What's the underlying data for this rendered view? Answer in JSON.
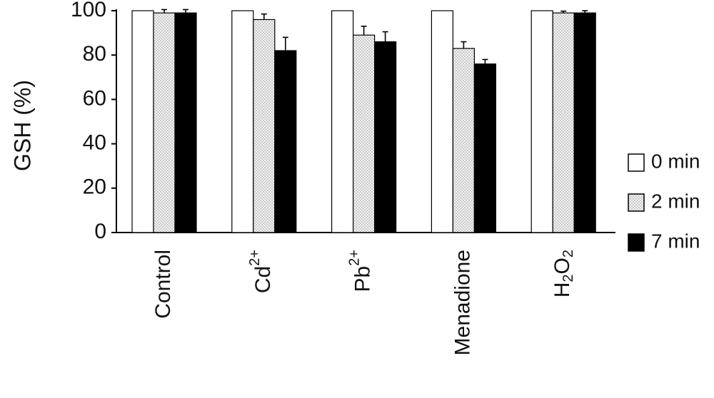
{
  "chart_data": {
    "type": "bar",
    "title": "",
    "xlabel": "",
    "ylabel": "GSH (%)",
    "ylim": [
      0,
      100
    ],
    "yticks": [
      0,
      20,
      40,
      60,
      80,
      100
    ],
    "grid": false,
    "legend_position": "right",
    "categories": [
      {
        "base": "Control",
        "sub": "",
        "sup": ""
      },
      {
        "base": "Cd",
        "sub": "",
        "sup": "2+"
      },
      {
        "base": "Pb",
        "sub": "",
        "sup": "2+"
      },
      {
        "base": "Menadione",
        "sub": "",
        "sup": ""
      },
      {
        "base": "H",
        "sub": "2",
        "base2": "O",
        "sub2": "2"
      }
    ],
    "series": [
      {
        "name": "0 min",
        "fill": "white",
        "values": [
          100,
          100,
          100,
          100,
          100
        ],
        "errors": [
          0,
          0,
          0,
          0,
          0
        ]
      },
      {
        "name": "2 min",
        "fill": "dotted",
        "values": [
          99,
          96,
          89,
          83,
          99
        ],
        "errors": [
          1.5,
          2.5,
          4,
          3,
          0.8
        ]
      },
      {
        "name": "7 min",
        "fill": "black",
        "values": [
          99,
          82,
          86,
          76,
          99
        ],
        "errors": [
          1.5,
          6,
          4.5,
          2,
          1
        ]
      }
    ]
  }
}
